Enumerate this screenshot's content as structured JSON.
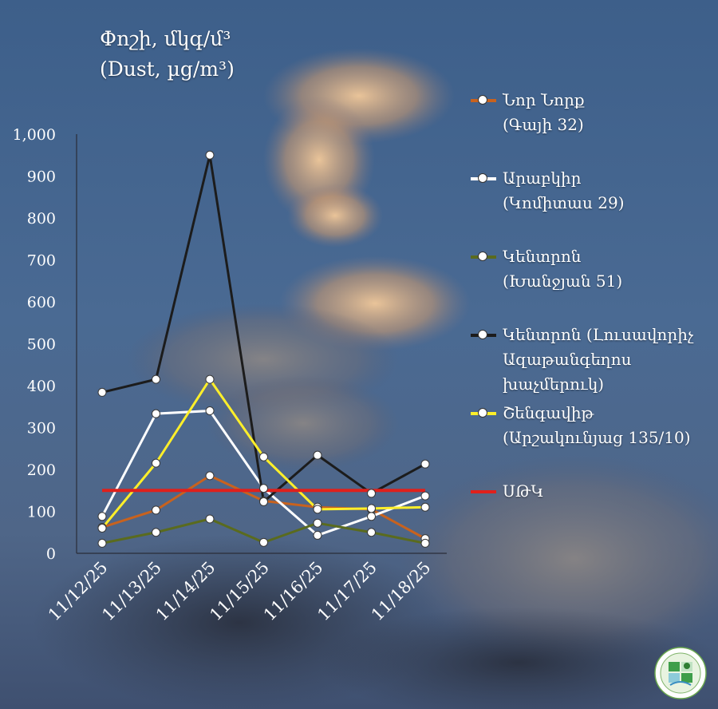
{
  "title": {
    "line1": "Փոշի, մկգ/մ³",
    "line2": "(Dust, µg/m³)"
  },
  "colors": {
    "nor_nork": "#c8621e",
    "arabkir": "#ffffff",
    "kentron_khanjyan": "#5a6b1e",
    "kentron_lusavorich": "#1c1c1c",
    "shengavit": "#ffef2a",
    "mtk": "#e0201b"
  },
  "chart_data": {
    "type": "line",
    "categories": [
      "11/12/25",
      "11/13/25",
      "11/14/25",
      "11/15/25",
      "11/16/25",
      "11/17/25",
      "11/18/25"
    ],
    "ylim": [
      0,
      1000
    ],
    "yticks": [
      "0",
      "100",
      "200",
      "300",
      "400",
      "500",
      "600",
      "700",
      "800",
      "900",
      "1,000"
    ],
    "grid": false,
    "legend_position": "right",
    "series": [
      {
        "name": "Նոր Նորք (Գայի 32)",
        "color_key": "nor_nork",
        "values": [
          62,
          103,
          185,
          125,
          110,
          105,
          35
        ]
      },
      {
        "name": "Արաբկիր (Կոմիտաս 29)",
        "color_key": "arabkir",
        "values": [
          88,
          333,
          340,
          155,
          43,
          88,
          137
        ]
      },
      {
        "name": "Կենտրոն (Խանջյան 51)",
        "color_key": "kentron_khanjyan",
        "values": [
          24,
          50,
          82,
          26,
          72,
          50,
          24
        ]
      },
      {
        "name": "Կենտրոն (Լուսավորիչ Ազաթանգեղոս խաչմերուկ)",
        "color_key": "kentron_lusavorich",
        "values": [
          384,
          415,
          950,
          123,
          234,
          143,
          213
        ]
      },
      {
        "name": "Շենգավիթ (Արշակունյաց 135/10)",
        "color_key": "shengavit",
        "values": [
          60,
          215,
          415,
          230,
          105,
          107,
          110
        ]
      },
      {
        "name": "ՍԹԿ",
        "color_key": "mtk",
        "values": [
          150,
          150,
          150,
          150,
          150,
          150,
          150
        ],
        "markers": false
      }
    ]
  },
  "legend": [
    {
      "label": "Նոր Նորք\n(Գայի 32)",
      "color_key": "nor_nork",
      "marker": true
    },
    {
      "label": "Արաբկիր\n(Կոմիտաս 29)",
      "color_key": "arabkir",
      "marker": true
    },
    {
      "label": "Կենտրոն\n(Խանջյան 51)",
      "color_key": "kentron_khanjyan",
      "marker": true
    },
    {
      "label": "Կենտրոն (Լուսավորիչ\nԱզաթանգեղոս\nխաչմերուկ)",
      "color_key": "kentron_lusavorich",
      "marker": true
    },
    {
      "label": "Շենգավիթ\n(Արշակունյաց 135/10)",
      "color_key": "shengavit",
      "marker": true
    },
    {
      "label": "ՍԹԿ",
      "color_key": "mtk",
      "marker": false
    }
  ],
  "logo": {
    "icon": "ministry-environment-seal-icon"
  }
}
